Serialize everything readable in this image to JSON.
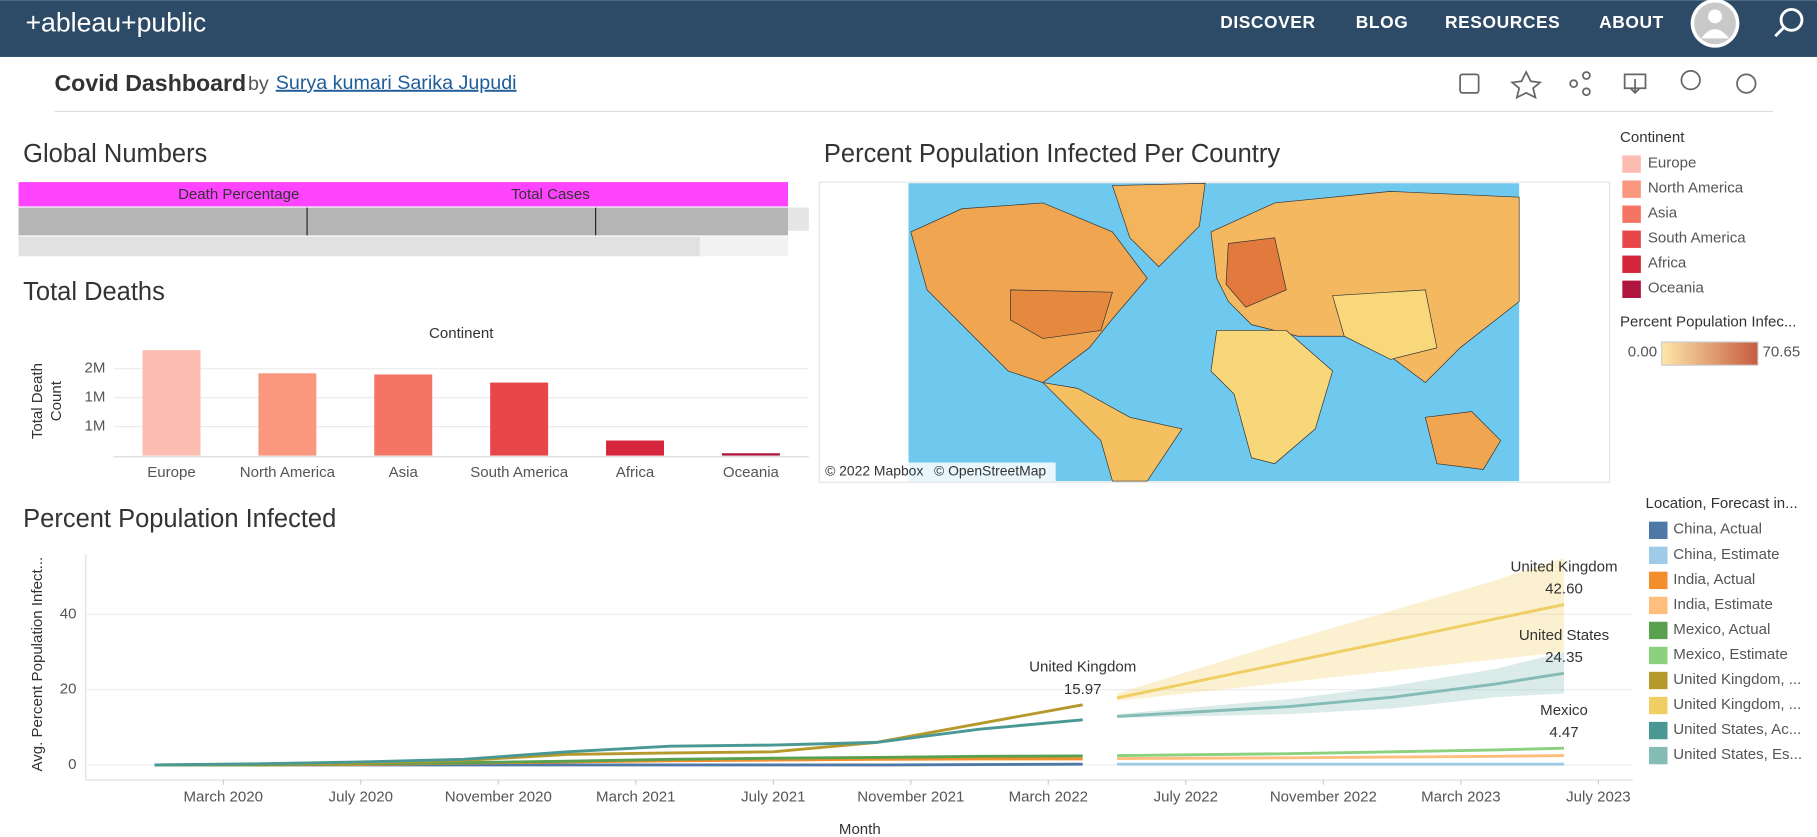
{
  "header": {
    "logo": "+ableau+public",
    "nav": [
      "DISCOVER",
      "BLOG",
      "RESOURCES",
      "ABOUT"
    ]
  },
  "dashboard": {
    "title": "Covid Dashboard",
    "by": "by",
    "author": "Surya kumari Sarika Jupudi"
  },
  "global_numbers": {
    "title": "Global Numbers",
    "columns": [
      "Death Percentage",
      "Total Cases"
    ]
  },
  "map": {
    "title": "Percent Population Infected Per Country",
    "attribution": [
      "© 2022 Mapbox",
      "© OpenStreetMap"
    ],
    "continent_legend": {
      "title": "Continent",
      "items": [
        {
          "name": "Europe",
          "color": "#fdbcb1"
        },
        {
          "name": "North America",
          "color": "#f9977f"
        },
        {
          "name": "Asia",
          "color": "#f47563"
        },
        {
          "name": "South America",
          "color": "#e8474a"
        },
        {
          "name": "Africa",
          "color": "#d5263c"
        },
        {
          "name": "Oceania",
          "color": "#b0153f"
        }
      ]
    },
    "color_legend": {
      "title": "Percent Population Infec...",
      "min": "0.00",
      "max": "70.65",
      "colors": [
        "#fde7a9",
        "#c65b3f"
      ]
    }
  },
  "chart_data": [
    {
      "type": "bar",
      "title": "Total Deaths",
      "column_header": "Continent",
      "y_label": [
        "Total Death",
        "Count"
      ],
      "categories": [
        "Europe",
        "North America",
        "Asia",
        "South America",
        "Africa",
        "Oceania"
      ],
      "values": [
        1820000,
        1420000,
        1400000,
        1260000,
        260000,
        40000
      ],
      "colors": [
        "#fdbcb1",
        "#f9977f",
        "#f47563",
        "#e8474a",
        "#d5263c",
        "#b0153f"
      ],
      "ylim": [
        0,
        2000000
      ],
      "yticks": [
        {
          "value": 500000,
          "label": "1M"
        },
        {
          "value": 1000000,
          "label": "1M"
        },
        {
          "value": 1500000,
          "label": "2M"
        }
      ],
      "grid": true
    },
    {
      "type": "line",
      "title": "Percent Population Infected",
      "x_label": "Month",
      "y_label": "Avg. Percent Population Infect...",
      "legend_title": "Location, Forecast in...",
      "x": [
        "2020-01",
        "2020-04",
        "2020-07",
        "2020-10",
        "2021-01",
        "2021-04",
        "2021-07",
        "2021-10",
        "2022-01",
        "2022-04",
        "2022-05",
        "2022-10",
        "2023-01",
        "2023-04",
        "2023-06"
      ],
      "xlim": [
        "2019-11",
        "2023-08"
      ],
      "xticks": [
        {
          "value": "2020-03",
          "label": "March 2020"
        },
        {
          "value": "2020-07",
          "label": "July 2020"
        },
        {
          "value": "2020-11",
          "label": "November 2020"
        },
        {
          "value": "2021-03",
          "label": "March 2021"
        },
        {
          "value": "2021-07",
          "label": "July 2021"
        },
        {
          "value": "2021-11",
          "label": "November 2021"
        },
        {
          "value": "2022-03",
          "label": "March 2022"
        },
        {
          "value": "2022-07",
          "label": "July 2022"
        },
        {
          "value": "2022-11",
          "label": "November 2022"
        },
        {
          "value": "2023-03",
          "label": "March 2023"
        },
        {
          "value": "2023-07",
          "label": "July 2023"
        }
      ],
      "ylim": [
        -4,
        56
      ],
      "yticks": [
        0,
        20,
        40
      ],
      "grid": true,
      "series": [
        {
          "name": "China, Actual",
          "color": "#4e79a7",
          "values": [
            0,
            0,
            0,
            0,
            0,
            0,
            0,
            0,
            0.1,
            0.2,
            null,
            null,
            null,
            null,
            null
          ]
        },
        {
          "name": "China, Estimate",
          "color": "#a0cbe8",
          "values": [
            null,
            null,
            null,
            null,
            null,
            null,
            null,
            null,
            null,
            null,
            0.2,
            0.2,
            0.2,
            0.2,
            0.2
          ]
        },
        {
          "name": "India, Actual",
          "color": "#f28e2b",
          "values": [
            0,
            0,
            0.1,
            0.5,
            0.8,
            1.1,
            1.3,
            1.5,
            1.6,
            1.6,
            null,
            null,
            null,
            null,
            null
          ]
        },
        {
          "name": "India, Estimate",
          "color": "#ffbe7d",
          "values": [
            null,
            null,
            null,
            null,
            null,
            null,
            null,
            null,
            null,
            null,
            1.7,
            1.9,
            2.1,
            2.3,
            2.5
          ]
        },
        {
          "name": "Mexico, Actual",
          "color": "#59a14f",
          "values": [
            0,
            0,
            0.3,
            0.6,
            1.0,
            1.5,
            1.8,
            2.0,
            2.3,
            2.4,
            null,
            null,
            null,
            null,
            null
          ]
        },
        {
          "name": "Mexico, Estimate",
          "color": "#8cd17d",
          "label": "Mexico",
          "values": [
            null,
            null,
            null,
            null,
            null,
            null,
            null,
            null,
            null,
            null,
            2.5,
            3.0,
            3.5,
            4.0,
            4.47
          ],
          "value_labels": [
            null,
            null,
            null,
            null,
            null,
            null,
            null,
            null,
            null,
            null,
            null,
            null,
            null,
            null,
            "4.47"
          ]
        },
        {
          "name": "United Kingdom, ...",
          "color": "#b6992d",
          "label": "United Kingdom",
          "values": [
            0,
            0.2,
            0.5,
            1.2,
            2.8,
            3.2,
            3.5,
            6.0,
            11.0,
            15.97,
            null,
            null,
            null,
            null,
            null
          ],
          "value_labels": [
            null,
            null,
            null,
            null,
            null,
            null,
            null,
            null,
            null,
            "15.97",
            null,
            null,
            null,
            null,
            null
          ]
        },
        {
          "name": "United Kingdom, ...",
          "color": "#f1ce63",
          "label": "United Kingdom",
          "values": [
            null,
            null,
            null,
            null,
            null,
            null,
            null,
            null,
            null,
            null,
            17.8,
            27.3,
            33.0,
            38.8,
            42.6
          ],
          "lower": [
            null,
            null,
            null,
            null,
            null,
            null,
            null,
            null,
            null,
            null,
            17,
            22,
            25,
            28,
            30
          ],
          "upper": [
            null,
            null,
            null,
            null,
            null,
            null,
            null,
            null,
            null,
            null,
            19,
            33,
            41,
            49,
            55
          ],
          "value_labels": [
            null,
            null,
            null,
            null,
            null,
            null,
            null,
            null,
            null,
            null,
            null,
            null,
            null,
            null,
            "42.60"
          ]
        },
        {
          "name": "United States, Ac...",
          "color": "#499894",
          "values": [
            0,
            0.3,
            0.8,
            1.5,
            3.5,
            5.0,
            5.3,
            6.0,
            9.5,
            12.0,
            null,
            null,
            null,
            null,
            null
          ]
        },
        {
          "name": "United States, Es...",
          "color": "#86bcb6",
          "label": "United States",
          "values": [
            null,
            null,
            null,
            null,
            null,
            null,
            null,
            null,
            null,
            null,
            12.9,
            15.5,
            18.0,
            21.5,
            24.35
          ],
          "lower": [
            null,
            null,
            null,
            null,
            null,
            null,
            null,
            null,
            null,
            null,
            12.5,
            13.5,
            15,
            18,
            19
          ],
          "upper": [
            null,
            null,
            null,
            null,
            null,
            null,
            null,
            null,
            null,
            null,
            13.5,
            17.5,
            21,
            25.5,
            30
          ],
          "value_labels": [
            null,
            null,
            null,
            null,
            null,
            null,
            null,
            null,
            null,
            null,
            null,
            null,
            null,
            null,
            "24.35"
          ]
        }
      ]
    }
  ]
}
